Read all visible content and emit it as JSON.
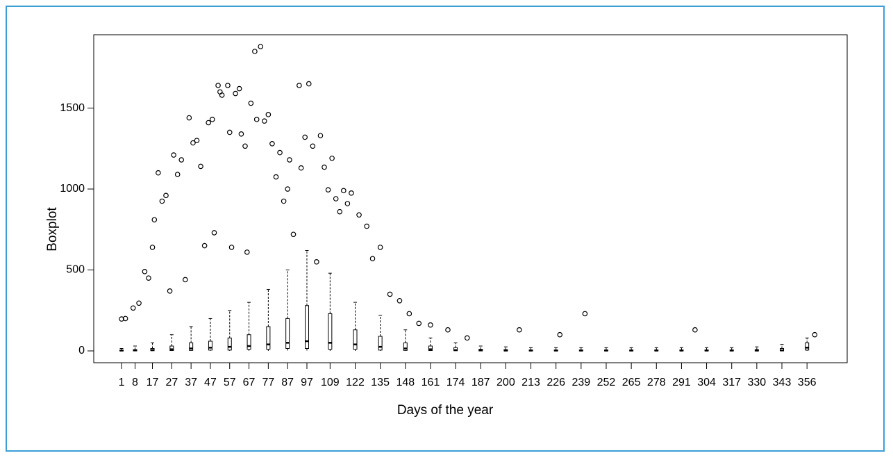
{
  "chart_data": {
    "type": "boxplot",
    "x_label": "Days of the year",
    "y_label": "Boxplot",
    "xlim": [
      -13.4,
      376.8
    ],
    "ylim": [
      -73,
      1953
    ],
    "xticks": [
      1,
      8,
      17,
      27,
      37,
      47,
      57,
      67,
      77,
      87,
      97,
      109,
      122,
      135,
      148,
      161,
      174,
      187,
      200,
      213,
      226,
      239,
      252,
      265,
      278,
      291,
      304,
      317,
      330,
      343,
      356
    ],
    "yticks": [
      0,
      500,
      1000,
      1500
    ],
    "color": "#000000",
    "boxes": {
      "x": [
        1,
        8,
        17,
        27,
        37,
        47,
        57,
        67,
        77,
        87,
        97,
        109,
        122,
        135,
        148,
        161,
        174,
        187,
        200,
        213,
        226,
        239,
        252,
        265,
        278,
        291,
        304,
        317,
        330,
        343,
        356
      ],
      "whisker_low": [
        0,
        0,
        0,
        0,
        0,
        0,
        0,
        0,
        0,
        0,
        0,
        0,
        0,
        0,
        0,
        0,
        0,
        0,
        0,
        0,
        0,
        0,
        0,
        0,
        0,
        0,
        0,
        0,
        0,
        0,
        0
      ],
      "q1": [
        0,
        0,
        1,
        2,
        3,
        5,
        5,
        10,
        10,
        15,
        15,
        10,
        10,
        5,
        3,
        2,
        1,
        0,
        0,
        0,
        0,
        0,
        0,
        0,
        0,
        0,
        0,
        0,
        0,
        0,
        5
      ],
      "median": [
        2,
        3,
        5,
        10,
        15,
        20,
        25,
        30,
        40,
        50,
        60,
        50,
        40,
        25,
        15,
        10,
        5,
        3,
        2,
        2,
        2,
        2,
        2,
        2,
        2,
        2,
        2,
        2,
        2,
        3,
        20
      ],
      "q3": [
        5,
        8,
        15,
        30,
        50,
        60,
        80,
        100,
        150,
        200,
        280,
        230,
        130,
        90,
        50,
        30,
        20,
        10,
        8,
        6,
        6,
        6,
        6,
        6,
        6,
        6,
        6,
        6,
        8,
        15,
        50
      ],
      "whisker_high": [
        15,
        30,
        50,
        100,
        150,
        200,
        250,
        300,
        380,
        500,
        620,
        480,
        300,
        220,
        130,
        80,
        50,
        30,
        25,
        20,
        20,
        20,
        20,
        20,
        20,
        20,
        20,
        20,
        25,
        40,
        80
      ]
    },
    "outliers": {
      "x": [
        1,
        3,
        7,
        10,
        13,
        15,
        17,
        18,
        20,
        22,
        24,
        26,
        28,
        30,
        32,
        34,
        36,
        38,
        40,
        42,
        44,
        46,
        48,
        49,
        51,
        52,
        53,
        56,
        57,
        58,
        60,
        62,
        63,
        65,
        66,
        68,
        70,
        71,
        73,
        75,
        77,
        79,
        81,
        83,
        85,
        87,
        88,
        90,
        93,
        94,
        96,
        98,
        100,
        102,
        104,
        106,
        108,
        110,
        112,
        114,
        116,
        118,
        120,
        124,
        128,
        131,
        135,
        140,
        145,
        150,
        155,
        161,
        170,
        180,
        207,
        228,
        241,
        298,
        360
      ],
      "y": [
        197,
        200,
        265,
        295,
        490,
        450,
        640,
        810,
        1100,
        925,
        960,
        370,
        1210,
        1090,
        1180,
        440,
        1440,
        1285,
        1300,
        1140,
        650,
        1410,
        1430,
        730,
        1640,
        1600,
        1580,
        1640,
        1350,
        640,
        1590,
        1620,
        1340,
        1265,
        610,
        1530,
        1850,
        1430,
        1880,
        1420,
        1460,
        1280,
        1075,
        1225,
        925,
        1000,
        1180,
        720,
        1640,
        1130,
        1320,
        1650,
        1265,
        550,
        1330,
        1135,
        995,
        1190,
        940,
        860,
        990,
        910,
        975,
        840,
        770,
        570,
        640,
        350,
        310,
        230,
        170,
        160,
        130,
        80,
        130,
        100,
        230,
        130,
        100
      ]
    }
  }
}
